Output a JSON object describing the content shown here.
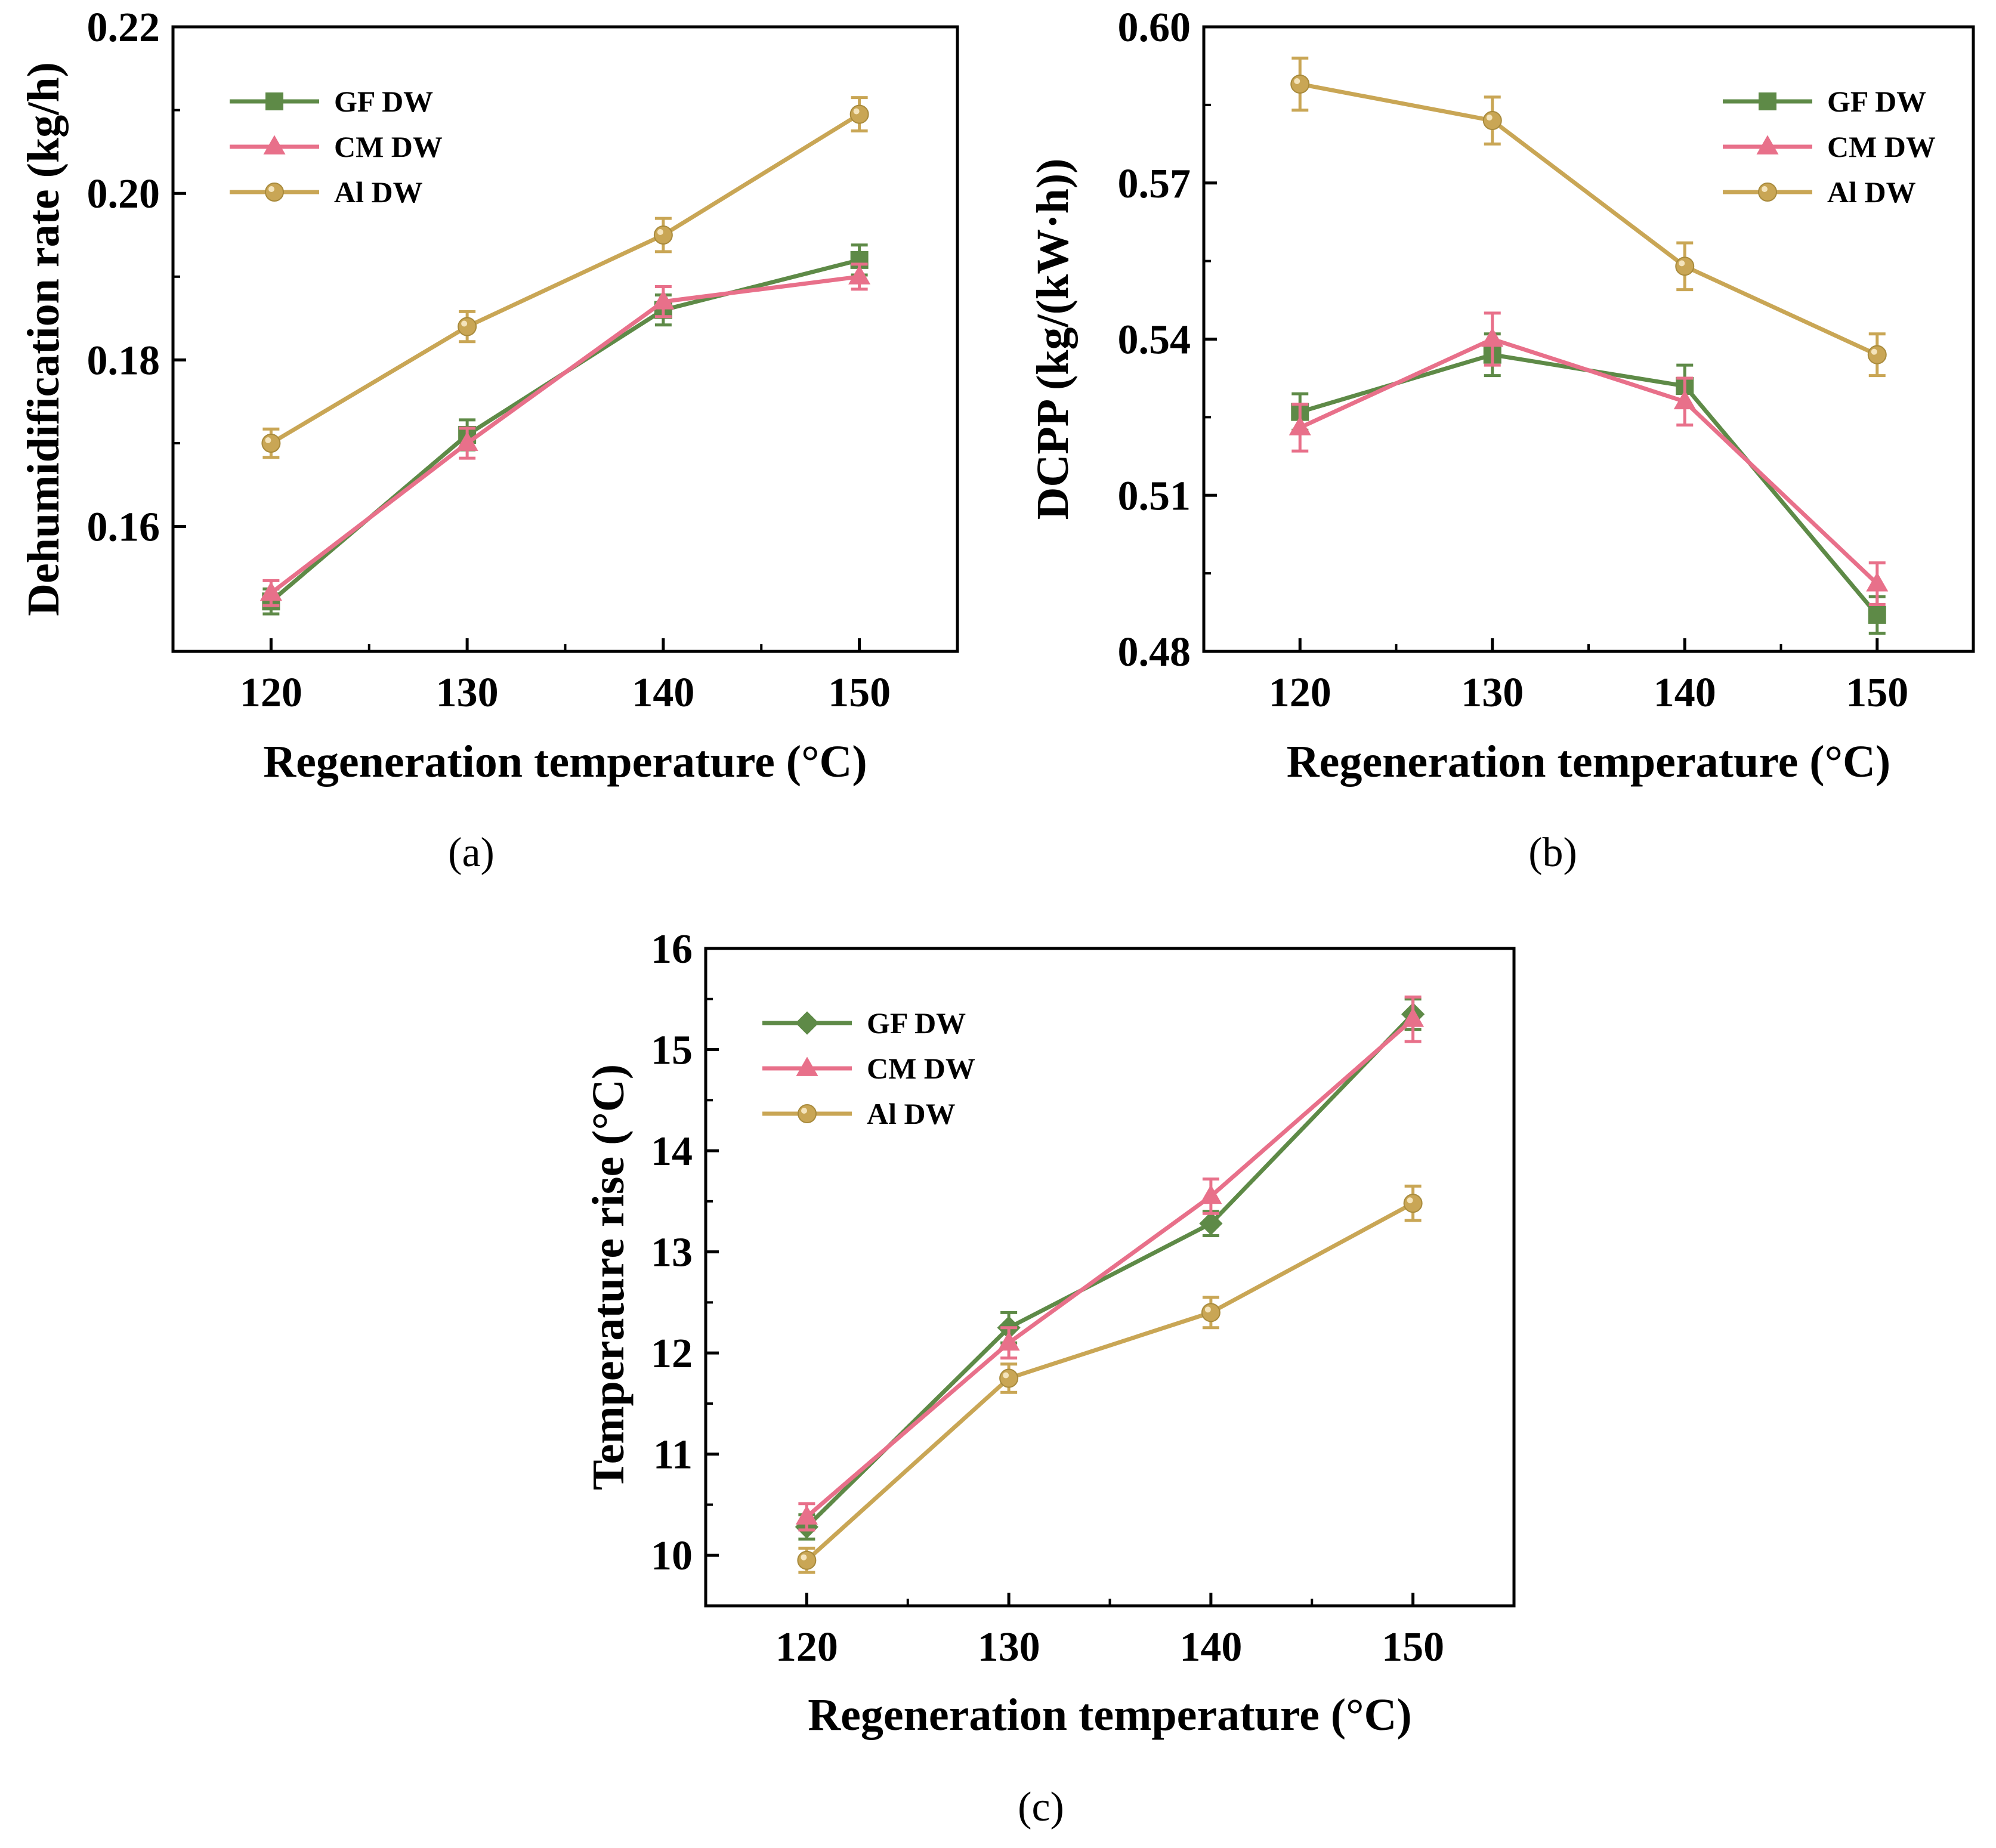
{
  "figure_title": "",
  "colors": {
    "GF DW": "#5e8a47",
    "CM DW": "#e8708a",
    "Al DW": "#c9a655"
  },
  "chart_data": [
    {
      "id": "a",
      "type": "line",
      "panel_label": "(a)",
      "title": "",
      "xlabel": "Regeneration temperature (°C)",
      "ylabel": "Dehumidification rate (kg/h)",
      "x": [
        120,
        130,
        140,
        150
      ],
      "xlim": [
        115,
        155
      ],
      "ylim": [
        0.145,
        0.22
      ],
      "xticks": [
        120,
        130,
        140,
        150
      ],
      "xtick_labels": [
        "120",
        "130",
        "140",
        "150"
      ],
      "yticks": [
        0.16,
        0.18,
        0.2,
        0.22
      ],
      "ytick_labels": [
        "0.16",
        "0.18",
        "0.20",
        "0.22"
      ],
      "legend_position": "top-left",
      "series": [
        {
          "name": "GF DW",
          "marker": "square",
          "values": [
            0.151,
            0.171,
            0.186,
            0.192
          ],
          "errors": [
            0.0015,
            0.0018,
            0.0018,
            0.0018
          ]
        },
        {
          "name": "CM DW",
          "marker": "triangle",
          "values": [
            0.152,
            0.17,
            0.187,
            0.19
          ],
          "errors": [
            0.0015,
            0.0018,
            0.0018,
            0.0015
          ]
        },
        {
          "name": "Al DW",
          "marker": "circle",
          "values": [
            0.17,
            0.184,
            0.195,
            0.2095
          ],
          "errors": [
            0.0017,
            0.0018,
            0.002,
            0.002
          ]
        }
      ]
    },
    {
      "id": "b",
      "type": "line",
      "panel_label": "(b)",
      "title": "",
      "xlabel": "Regeneration temperature (°C)",
      "ylabel": "DCPP (kg/(kW·h))",
      "x": [
        120,
        130,
        140,
        150
      ],
      "xlim": [
        115,
        155
      ],
      "ylim": [
        0.48,
        0.6
      ],
      "xticks": [
        120,
        130,
        140,
        150
      ],
      "xtick_labels": [
        "120",
        "130",
        "140",
        "150"
      ],
      "yticks": [
        0.48,
        0.51,
        0.54,
        0.57,
        0.6
      ],
      "ytick_labels": [
        "0.48",
        "0.51",
        "0.54",
        "0.57",
        "0.60"
      ],
      "legend_position": "top-right",
      "series": [
        {
          "name": "GF DW",
          "marker": "square",
          "values": [
            0.526,
            0.537,
            0.531,
            0.487
          ],
          "errors": [
            0.0035,
            0.004,
            0.004,
            0.0035
          ]
        },
        {
          "name": "CM DW",
          "marker": "triangle",
          "values": [
            0.523,
            0.54,
            0.528,
            0.493
          ],
          "errors": [
            0.0045,
            0.005,
            0.0045,
            0.004
          ]
        },
        {
          "name": "Al DW",
          "marker": "circle",
          "values": [
            0.589,
            0.582,
            0.554,
            0.537
          ],
          "errors": [
            0.005,
            0.0045,
            0.0045,
            0.004
          ]
        }
      ]
    },
    {
      "id": "c",
      "type": "line",
      "panel_label": "(c)",
      "title": "",
      "xlabel": "Regeneration temperature (°C)",
      "ylabel": "Temperature rise (°C)",
      "x": [
        120,
        130,
        140,
        150
      ],
      "xlim": [
        115,
        155
      ],
      "ylim": [
        9.5,
        16
      ],
      "xticks": [
        120,
        130,
        140,
        150
      ],
      "xtick_labels": [
        "120",
        "130",
        "140",
        "150"
      ],
      "yticks": [
        10,
        11,
        12,
        13,
        14,
        15,
        16
      ],
      "ytick_labels": [
        "10",
        "11",
        "12",
        "13",
        "14",
        "15",
        "16"
      ],
      "legend_position": "top-left",
      "series": [
        {
          "name": "GF DW",
          "marker": "diamond",
          "values": [
            10.28,
            12.25,
            13.28,
            15.35
          ],
          "errors": [
            0.12,
            0.15,
            0.12,
            0.15
          ]
        },
        {
          "name": "CM DW",
          "marker": "triangle",
          "values": [
            10.38,
            12.1,
            13.55,
            15.3
          ],
          "errors": [
            0.13,
            0.15,
            0.17,
            0.22
          ]
        },
        {
          "name": "Al DW",
          "marker": "circle",
          "values": [
            9.95,
            11.75,
            12.4,
            13.48
          ],
          "errors": [
            0.12,
            0.14,
            0.15,
            0.17
          ]
        }
      ]
    }
  ]
}
